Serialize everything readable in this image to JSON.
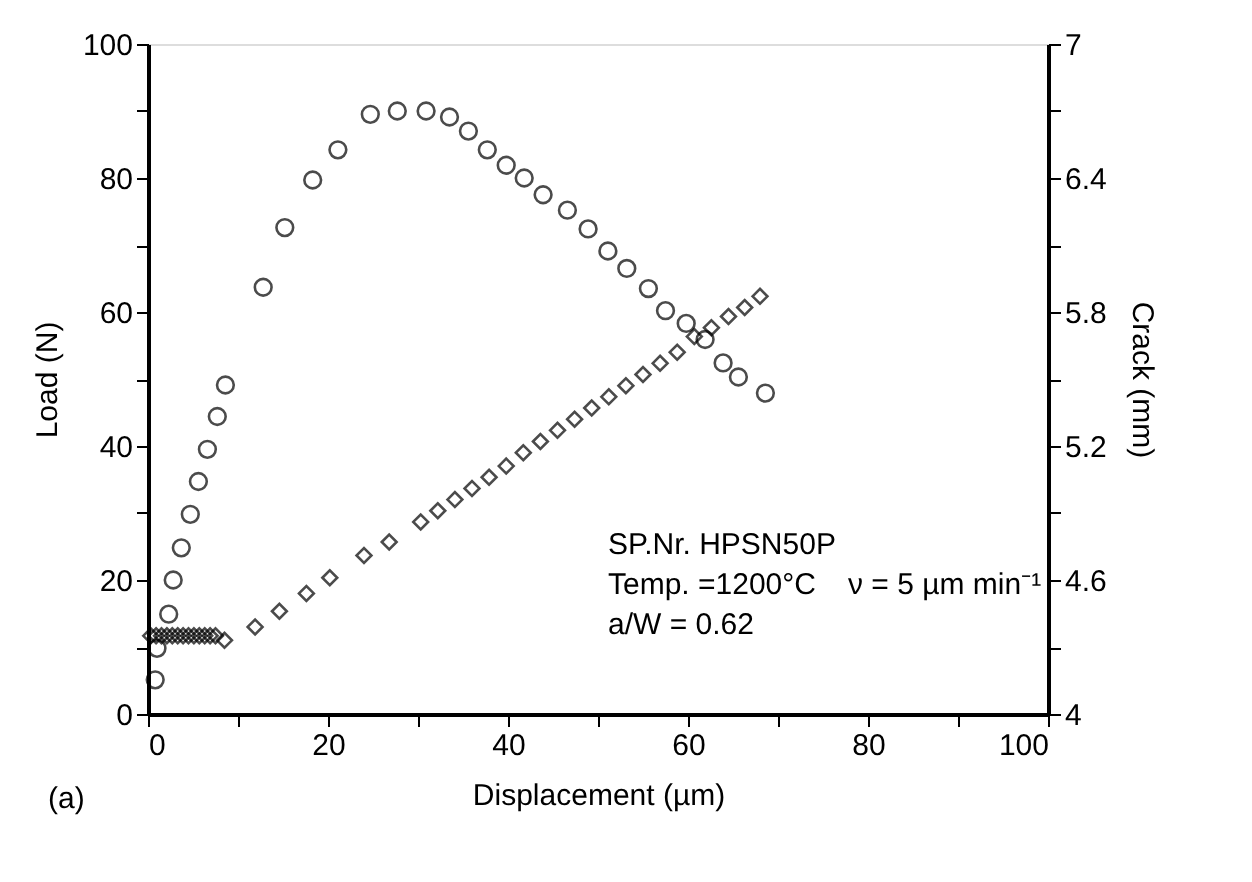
{
  "chart_data": {
    "type": "scatter",
    "xlabel": "Displacement (µm)",
    "ylabel": "Load (N)",
    "y2label": "Crack (mm)",
    "xlim": [
      0,
      100
    ],
    "xticks": [
      0,
      {
        "value": 10,
        "label": null
      },
      20,
      {
        "value": 30,
        "label": null
      },
      40,
      {
        "value": 50,
        "label": null
      },
      60,
      {
        "value": 70,
        "label": null
      },
      80,
      {
        "value": 90,
        "label": null
      },
      100
    ],
    "ylim": [
      0,
      100
    ],
    "yticks": [
      0,
      {
        "value": 10,
        "label": null
      },
      20,
      {
        "value": 30,
        "label": null
      },
      40,
      {
        "value": 50,
        "label": null
      },
      60,
      {
        "value": 70,
        "label": null
      },
      80,
      {
        "value": 90,
        "label": null
      },
      100
    ],
    "y2lim": [
      4,
      7
    ],
    "y2ticks": [
      4,
      {
        "value": 4.3,
        "label": null
      },
      4.6,
      {
        "value": 4.9,
        "label": null
      },
      5.2,
      {
        "value": 5.5,
        "label": null
      },
      5.8,
      {
        "value": 6.1,
        "label": null
      },
      6.4,
      {
        "value": 6.7,
        "label": null
      },
      7
    ],
    "grid": false,
    "series": [
      {
        "color": "#000000",
        "marker": "circle",
        "x": [
          0.8,
          1.0,
          2.3,
          2.8,
          3.7,
          4.7,
          5.6,
          6.6,
          7.7,
          8.6,
          12.8,
          15.2,
          18.3,
          21.1,
          24.7,
          27.7,
          30.9,
          33.5,
          35.6,
          37.7,
          39.8,
          41.8,
          43.9,
          46.6,
          48.9,
          51.1,
          53.2,
          55.6,
          57.5,
          59.8,
          61.9,
          63.9,
          65.6,
          68.6
        ],
        "values": [
          5.1,
          9.8,
          14.9,
          20,
          24.8,
          29.8,
          34.7,
          39.5,
          44.4,
          49.1,
          63.7,
          72.6,
          79.7,
          84.2,
          89.5,
          90,
          90,
          89.1,
          87,
          84.2,
          81.9,
          80,
          77.5,
          75.2,
          72.4,
          69.1,
          66.5,
          63.5,
          60.2,
          58.3,
          55.9,
          52.4,
          50.3,
          47.9
        ]
      },
      {
        "color": "#000000",
        "marker": "diamond",
        "axis": "y2",
        "x": [
          0.3,
          0.9,
          1.5,
          2.1,
          2.7,
          3.3,
          3.9,
          4.5,
          5.1,
          5.7,
          6.3,
          6.9,
          7.5,
          8.5,
          11.9,
          14.6,
          17.6,
          20.2,
          24.0,
          26.8,
          30.3,
          32.2,
          34.1,
          36.0,
          37.9,
          39.8,
          41.7,
          43.6,
          45.5,
          47.4,
          49.3,
          51.2,
          53.1,
          55.0,
          56.9,
          58.8,
          60.7,
          62.6,
          64.5,
          66.3,
          68.0
        ],
        "values": [
          4.35,
          4.35,
          4.35,
          4.35,
          4.35,
          4.35,
          4.35,
          4.35,
          4.35,
          4.35,
          4.35,
          4.35,
          4.35,
          4.33,
          4.39,
          4.46,
          4.54,
          4.61,
          4.71,
          4.77,
          4.86,
          4.91,
          4.96,
          5.01,
          5.06,
          5.11,
          5.17,
          5.22,
          5.27,
          5.32,
          5.37,
          5.42,
          5.47,
          5.52,
          5.57,
          5.62,
          5.69,
          5.73,
          5.78,
          5.82,
          5.87
        ]
      }
    ],
    "annotations": [
      "SP.Nr.  HPSN50P",
      "Temp. =1200°C",
      "ν = 5 µm min⁻¹",
      "a/W = 0.62",
      "(a)"
    ]
  }
}
